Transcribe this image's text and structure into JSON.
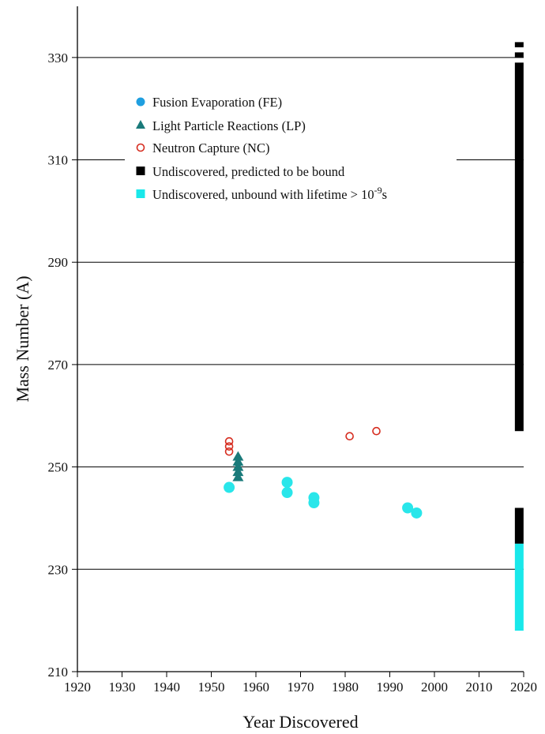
{
  "chart_data": {
    "type": "scatter",
    "xlabel": "Year Discovered",
    "ylabel": "Mass Number (A)",
    "xlim": [
      1920,
      2020
    ],
    "ylim": [
      210,
      340
    ],
    "xticks": [
      1920,
      1930,
      1940,
      1950,
      1960,
      1970,
      1980,
      1990,
      2000,
      2010,
      2020
    ],
    "yticks": [
      210,
      230,
      250,
      270,
      290,
      310,
      330
    ],
    "grid": "horizontal lines at y ticks",
    "legend_placement": "upper-left",
    "series": [
      {
        "name": "Fusion Evaporation (FE)",
        "marker": "filled-circle",
        "color": "#29e6ea",
        "legend_color": "#1f9fe0",
        "points": [
          [
            1954,
            246
          ],
          [
            1967,
            247
          ],
          [
            1967,
            245
          ],
          [
            1973,
            244
          ],
          [
            1973,
            243
          ],
          [
            1994,
            242
          ],
          [
            1996,
            241
          ]
        ]
      },
      {
        "name": "Light Particle Reactions (LP)",
        "marker": "filled-triangle",
        "color": "#1a7a7a",
        "points": [
          [
            1956,
            248
          ],
          [
            1956,
            249
          ],
          [
            1956,
            250
          ],
          [
            1956,
            251
          ],
          [
            1956,
            252
          ]
        ]
      },
      {
        "name": "Neutron Capture (NC)",
        "marker": "open-circle",
        "color": "#d62d20",
        "points": [
          [
            1954,
            253
          ],
          [
            1954,
            254
          ],
          [
            1954,
            255
          ],
          [
            1981,
            256
          ],
          [
            1987,
            257
          ]
        ]
      },
      {
        "name": "Undiscovered, predicted to be bound",
        "marker": "filled-square",
        "color": "#000000",
        "bars": [
          {
            "x": 2019,
            "y_min": 235,
            "y_max": 242
          },
          {
            "x": 2019,
            "y_min": 257,
            "y_max": 329
          },
          {
            "x": 2019,
            "y_min": 330,
            "y_max": 331
          },
          {
            "x": 2019,
            "y_min": 332,
            "y_max": 333
          }
        ]
      },
      {
        "name": "Undiscovered, unbound with lifetime > 10",
        "name_superscript": "-9",
        "name_suffix": "s",
        "marker": "filled-square",
        "color": "#19e8ea",
        "bars": [
          {
            "x": 2019,
            "y_min": 218,
            "y_max": 235
          }
        ]
      }
    ]
  }
}
